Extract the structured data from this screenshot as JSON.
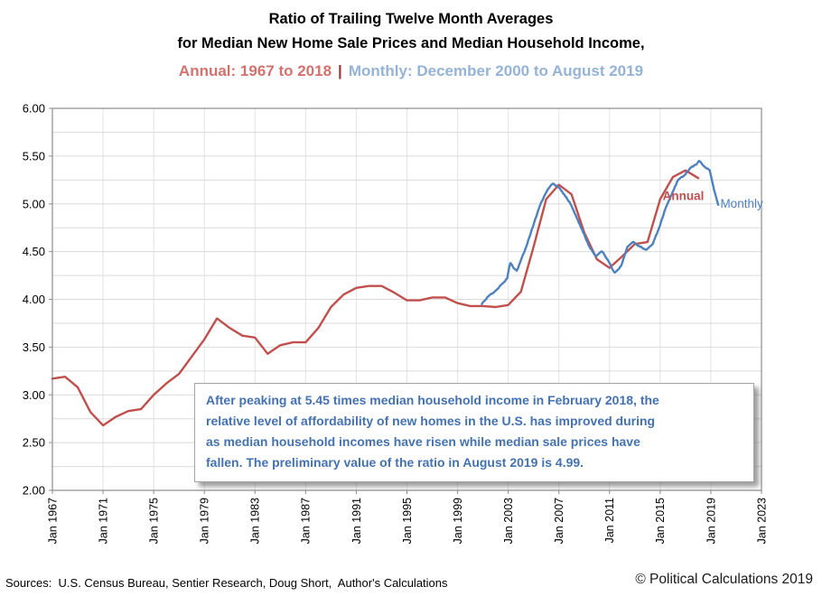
{
  "title": {
    "line1": "Ratio of Trailing Twelve Month Averages",
    "line2": "for Median New Home Sale Prices and Median Household Income,",
    "annual_part": "Annual: 1967 to 2018",
    "separator": "|",
    "monthly_part": "Monthly: December 2000 to August 2019"
  },
  "annotation": {
    "lines": [
      "After peaking at 5.45 times median household income in February 2018, the",
      "relative level of affordability of new homes in the U.S. has improved during",
      "as median household incomes have risen while median sale prices have",
      "fallen.  The preliminary value of the ratio in August 2019 is 4.99."
    ]
  },
  "footer": {
    "sources": "Sources:  U.S. Census Bureau, Sentier Research, Doug Short,  Author's Calculations",
    "copyright": "© Political Calculations 2019"
  },
  "colors": {
    "annual_line": "#C0504D",
    "monthly_line": "#4F81BD",
    "annual_title": "#D2726E",
    "separator": "#963634",
    "monthly_title": "#95B3D7",
    "annotation_text": "#4472B0",
    "grid_horizontal": "#DBDBDB",
    "grid_vertical": "#E3E3E3",
    "plot_border": "#8C8C8C"
  },
  "chart_data": {
    "type": "line",
    "title": "Ratio of Trailing Twelve Month Averages for Median New Home Sale Prices and Median Household Income",
    "ylim": [
      2.0,
      6.0
    ],
    "y_grid_step": 0.25,
    "y_ticks": [
      "6.00",
      "5.50",
      "5.00",
      "4.50",
      "4.00",
      "3.50",
      "3.00",
      "2.50",
      "2.00"
    ],
    "x_range_years": [
      1967,
      2023
    ],
    "x_ticks": [
      {
        "label": "Jan 1967",
        "year": 1967
      },
      {
        "label": "Jan 1971",
        "year": 1971
      },
      {
        "label": "Jan 1975",
        "year": 1975
      },
      {
        "label": "Jan 1979",
        "year": 1979
      },
      {
        "label": "Jan 1983",
        "year": 1983
      },
      {
        "label": "Jan 1987",
        "year": 1987
      },
      {
        "label": "Jan 1991",
        "year": 1991
      },
      {
        "label": "Jan 1995",
        "year": 1995
      },
      {
        "label": "Jan 1999",
        "year": 1999
      },
      {
        "label": "Jan 2003",
        "year": 2003
      },
      {
        "label": "Jan 2007",
        "year": 2007
      },
      {
        "label": "Jan 2011",
        "year": 2011
      },
      {
        "label": "Jan 2015",
        "year": 2015
      },
      {
        "label": "Jan 2019",
        "year": 2019
      },
      {
        "label": "Jan 2023",
        "year": 2023
      }
    ],
    "grid": true,
    "legend_position": "inline-labels",
    "series": [
      {
        "name": "Annual",
        "color": "#C0504D",
        "start_year": 1967,
        "step_years": 1,
        "values": [
          3.17,
          3.19,
          3.08,
          2.82,
          2.68,
          2.77,
          2.83,
          2.85,
          3.0,
          3.12,
          3.22,
          3.4,
          3.58,
          3.8,
          3.7,
          3.62,
          3.6,
          3.43,
          3.52,
          3.55,
          3.55,
          3.7,
          3.92,
          4.05,
          4.12,
          4.14,
          4.14,
          4.07,
          3.99,
          3.99,
          4.02,
          4.02,
          3.96,
          3.93,
          3.93,
          3.92,
          3.94,
          4.08,
          4.55,
          5.05,
          5.2,
          5.1,
          4.7,
          4.42,
          4.33,
          4.45,
          4.58,
          4.6,
          5.05,
          5.28,
          5.35,
          5.27
        ]
      },
      {
        "name": "Monthly",
        "color": "#4F81BD",
        "start_year": 2000.9167,
        "step_years": 0.0833333,
        "values": [
          3.95,
          3.97,
          3.98,
          3.99,
          4.0,
          4.02,
          4.03,
          4.04,
          4.05,
          4.06,
          4.06,
          4.07,
          4.08,
          4.09,
          4.1,
          4.11,
          4.12,
          4.14,
          4.15,
          4.16,
          4.17,
          4.18,
          4.19,
          4.21,
          4.22,
          4.28,
          4.34,
          4.38,
          4.37,
          4.35,
          4.33,
          4.32,
          4.31,
          4.3,
          4.32,
          4.35,
          4.38,
          4.41,
          4.44,
          4.47,
          4.49,
          4.52,
          4.55,
          4.58,
          4.62,
          4.65,
          4.68,
          4.72,
          4.75,
          4.78,
          4.82,
          4.85,
          4.88,
          4.92,
          4.95,
          4.98,
          5.01,
          5.03,
          5.05,
          5.08,
          5.1,
          5.12,
          5.14,
          5.16,
          5.17,
          5.19,
          5.2,
          5.21,
          5.21,
          5.2,
          5.19,
          5.19,
          5.18,
          5.17,
          5.16,
          5.14,
          5.13,
          5.11,
          5.1,
          5.08,
          5.07,
          5.05,
          5.03,
          5.02,
          5.0,
          4.98,
          4.95,
          4.93,
          4.9,
          4.88,
          4.85,
          4.83,
          4.8,
          4.78,
          4.75,
          4.73,
          4.7,
          4.68,
          4.65,
          4.62,
          4.6,
          4.57,
          4.55,
          4.53,
          4.52,
          4.5,
          4.48,
          4.47,
          4.45,
          4.46,
          4.47,
          4.48,
          4.49,
          4.5,
          4.5,
          4.49,
          4.47,
          4.45,
          4.43,
          4.42,
          4.4,
          4.38,
          4.36,
          4.33,
          4.31,
          4.29,
          4.28,
          4.29,
          4.3,
          4.31,
          4.32,
          4.34,
          4.35,
          4.38,
          4.42,
          4.45,
          4.48,
          4.52,
          4.55,
          4.56,
          4.57,
          4.58,
          4.59,
          4.6,
          4.6,
          4.59,
          4.58,
          4.57,
          4.56,
          4.56,
          4.55,
          4.55,
          4.54,
          4.53,
          4.53,
          4.52,
          4.52,
          4.53,
          4.54,
          4.55,
          4.56,
          4.57,
          4.58,
          4.61,
          4.64,
          4.67,
          4.69,
          4.72,
          4.75,
          4.78,
          4.82,
          4.85,
          4.88,
          4.92,
          4.95,
          4.98,
          5.0,
          5.03,
          5.05,
          5.08,
          5.1,
          5.13,
          5.15,
          5.18,
          5.2,
          5.23,
          5.25,
          5.26,
          5.27,
          5.28,
          5.28,
          5.29,
          5.3,
          5.31,
          5.33,
          5.34,
          5.35,
          5.37,
          5.38,
          5.39,
          5.39,
          5.4,
          5.41,
          5.41,
          5.42,
          5.44,
          5.45,
          5.44,
          5.43,
          5.41,
          5.4,
          5.39,
          5.38,
          5.37,
          5.37,
          5.36,
          5.35,
          5.3,
          5.25,
          5.2,
          5.15,
          5.11,
          5.07,
          5.03,
          4.99
        ]
      }
    ],
    "series_labels": [
      {
        "text": "Annual",
        "x": 2015.2,
        "y": 5.08,
        "color": "#C0504D",
        "bold": true
      },
      {
        "text": "Monthly",
        "x": 2019.75,
        "y": 5.0,
        "color": "#4F81BD",
        "bold": false
      }
    ]
  }
}
